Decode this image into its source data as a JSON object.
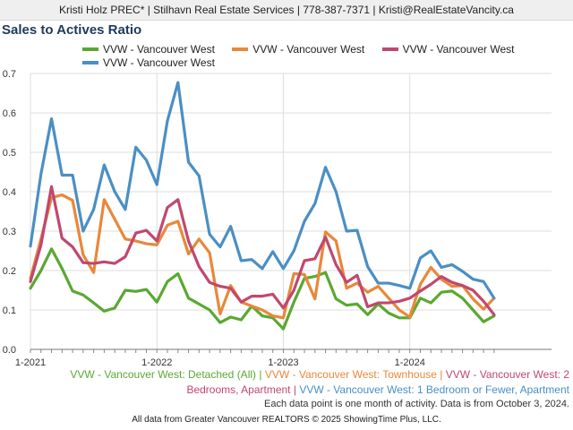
{
  "header": {
    "text": "Kristi Holz PREC* | Stilhavn Real Estate Services | 778-387-7371 | Kristi@RealEstateVancity.ca"
  },
  "chart_data": {
    "type": "line",
    "title": "Sales to Actives Ratio",
    "xlabel": "",
    "ylabel": "",
    "ylim": [
      0,
      0.7
    ],
    "y_ticks": [
      "0.0",
      "0.1",
      "0.2",
      "0.3",
      "0.4",
      "0.5",
      "0.6",
      "0.7"
    ],
    "x_tick_labels": [
      "1-2021",
      "1-2022",
      "1-2023",
      "1-2024"
    ],
    "x_range": [
      "2021-01",
      "2024-09"
    ],
    "grid": true,
    "legend_position": "top",
    "series": [
      {
        "name": "VVW - Vancouver West",
        "color": "#5aa832",
        "values": [
          0.155,
          0.2,
          0.255,
          0.205,
          0.148,
          0.138,
          0.118,
          0.097,
          0.105,
          0.15,
          0.147,
          0.152,
          0.12,
          0.172,
          0.192,
          0.13,
          0.115,
          0.1,
          0.068,
          0.082,
          0.075,
          0.11,
          0.085,
          0.08,
          0.052,
          0.12,
          0.18,
          0.185,
          0.195,
          0.128,
          0.112,
          0.115,
          0.088,
          0.115,
          0.092,
          0.08,
          0.08,
          0.13,
          0.118,
          0.145,
          0.148,
          0.13,
          0.1,
          0.07,
          0.085
        ]
      },
      {
        "name": "VVW - Vancouver West",
        "color": "#e8883a",
        "values": [
          0.18,
          0.28,
          0.385,
          0.392,
          0.378,
          0.24,
          0.195,
          0.38,
          0.33,
          0.28,
          0.275,
          0.268,
          0.265,
          0.315,
          0.325,
          0.242,
          0.28,
          0.245,
          0.09,
          0.162,
          0.12,
          0.11,
          0.1,
          0.085,
          0.08,
          0.192,
          0.19,
          0.128,
          0.298,
          0.275,
          0.155,
          0.168,
          0.145,
          0.16,
          0.13,
          0.1,
          0.082,
          0.165,
          0.208,
          0.178,
          0.16,
          0.162,
          0.128,
          0.102,
          0.13
        ]
      },
      {
        "name": "VVW - Vancouver West",
        "color": "#c0486e",
        "values": [
          0.172,
          0.265,
          0.413,
          0.282,
          0.26,
          0.22,
          0.218,
          0.222,
          0.218,
          0.235,
          0.295,
          0.302,
          0.275,
          0.36,
          0.38,
          0.275,
          0.21,
          0.17,
          0.16,
          0.155,
          0.12,
          0.135,
          0.135,
          0.14,
          0.105,
          0.15,
          0.225,
          0.23,
          0.285,
          0.215,
          0.17,
          0.188,
          0.108,
          0.118,
          0.118,
          0.122,
          0.13,
          0.148,
          0.165,
          0.185,
          0.17,
          0.162,
          0.15,
          0.122,
          0.088
        ]
      },
      {
        "name": "VVW - Vancouver West",
        "color": "#4a8fc4",
        "values": [
          0.262,
          0.445,
          0.585,
          0.442,
          0.442,
          0.3,
          0.355,
          0.468,
          0.4,
          0.355,
          0.513,
          0.48,
          0.418,
          0.58,
          0.677,
          0.475,
          0.44,
          0.292,
          0.26,
          0.312,
          0.225,
          0.228,
          0.205,
          0.248,
          0.205,
          0.25,
          0.325,
          0.37,
          0.462,
          0.4,
          0.3,
          0.302,
          0.21,
          0.168,
          0.168,
          0.162,
          0.155,
          0.232,
          0.25,
          0.208,
          0.215,
          0.198,
          0.178,
          0.172,
          0.13
        ]
      }
    ]
  },
  "caption": {
    "series_labels": [
      {
        "text": "VVW - Vancouver West: Detached (All)",
        "color": "#5aa832"
      },
      {
        "text": "VVW - Vancouver West: Townhouse",
        "color": "#e8883a"
      },
      {
        "text": "VVW - Vancouver West: 2",
        "color": "#c0486e"
      },
      {
        "text": "Bedrooms, Apartment",
        "color": "#c0486e"
      },
      {
        "text": "VVW - Vancouver West: 1 Bedroom or Fewer, Apartment",
        "color": "#4a8fc4"
      }
    ],
    "separator": " | ",
    "note": "Each data point is one month of activity. Data is from October 3, 2024."
  },
  "footer": {
    "text": "All data from Greater Vancouver REALTORS © 2025 ShowingTime Plus, LLC."
  }
}
